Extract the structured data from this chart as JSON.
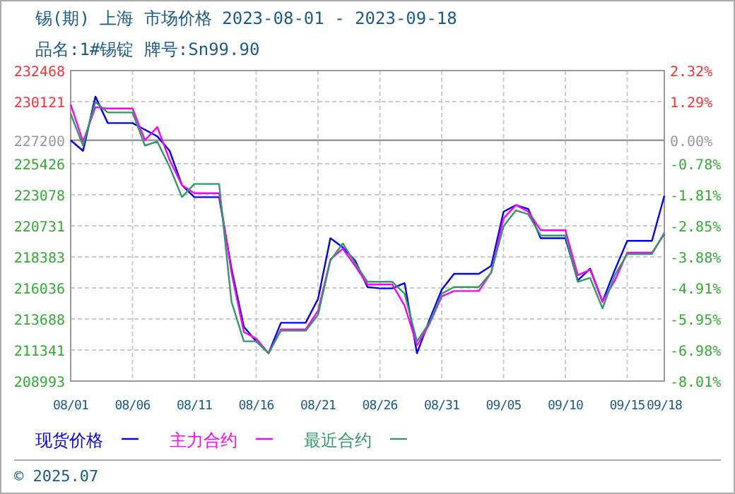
{
  "chart_data": {
    "type": "line",
    "title": "锡(期) 上海 市场价格 2023-08-01 - 2023-09-18",
    "subtitle": "品名:1#锡锭 牌号:Sn99.90",
    "x": [
      "2023-08-01",
      "2023-08-02",
      "2023-08-03",
      "2023-08-04",
      "2023-08-05",
      "2023-08-06",
      "2023-08-07",
      "2023-08-08",
      "2023-08-09",
      "2023-08-10",
      "2023-08-11",
      "2023-08-12",
      "2023-08-13",
      "2023-08-14",
      "2023-08-15",
      "2023-08-16",
      "2023-08-17",
      "2023-08-18",
      "2023-08-19",
      "2023-08-20",
      "2023-08-21",
      "2023-08-22",
      "2023-08-23",
      "2023-08-24",
      "2023-08-25",
      "2023-08-26",
      "2023-08-27",
      "2023-08-28",
      "2023-08-29",
      "2023-08-30",
      "2023-08-31",
      "2023-09-01",
      "2023-09-02",
      "2023-09-03",
      "2023-09-04",
      "2023-09-05",
      "2023-09-06",
      "2023-09-07",
      "2023-09-08",
      "2023-09-09",
      "2023-09-10",
      "2023-09-11",
      "2023-09-12",
      "2023-09-13",
      "2023-09-14",
      "2023-09-15",
      "2023-09-16",
      "2023-09-17",
      "2023-09-18"
    ],
    "series": [
      {
        "name": "现货价格",
        "color": "#0000ff",
        "values": [
          227200,
          226400,
          230500,
          228500,
          228500,
          228500,
          228000,
          227500,
          226400,
          223800,
          222900,
          222900,
          222900,
          217500,
          213100,
          212000,
          211100,
          213400,
          213400,
          213400,
          215200,
          219800,
          219100,
          218100,
          216100,
          216000,
          216000,
          216400,
          211100,
          213600,
          215900,
          217100,
          217100,
          217100,
          217700,
          221800,
          222300,
          222000,
          219800,
          219800,
          219800,
          216600,
          217500,
          215000,
          217400,
          219600,
          219600,
          219600,
          223000
        ]
      },
      {
        "name": "主力合约",
        "color": "#ff00ff",
        "values": [
          229900,
          227100,
          229700,
          229600,
          229600,
          229600,
          227200,
          228200,
          225700,
          223800,
          223200,
          223200,
          223200,
          217200,
          212700,
          212200,
          211100,
          212900,
          212900,
          212900,
          214300,
          218200,
          219000,
          217700,
          216300,
          216300,
          216300,
          214700,
          211700,
          213300,
          215400,
          215800,
          215800,
          215800,
          217200,
          221300,
          222300,
          221800,
          220400,
          220400,
          220400,
          217000,
          217400,
          215000,
          216600,
          218700,
          218700,
          218700,
          220100
        ]
      },
      {
        "name": "最近合约",
        "color": "#339966",
        "values": [
          229200,
          226800,
          230100,
          229300,
          229300,
          229300,
          226800,
          227100,
          225200,
          222900,
          223900,
          223900,
          223900,
          215000,
          212000,
          212000,
          211100,
          212800,
          212800,
          212800,
          214000,
          218100,
          219400,
          217900,
          216500,
          216500,
          216500,
          215600,
          212000,
          213400,
          215600,
          216100,
          216100,
          216100,
          217200,
          220700,
          221900,
          221600,
          220000,
          220000,
          220000,
          216500,
          216800,
          214500,
          217000,
          218600,
          218600,
          218600,
          220200
        ]
      }
    ],
    "xlim": [
      "2023-08-01",
      "2023-09-18"
    ],
    "xticks": [
      {
        "value": "2023-08-01",
        "label": "08/01"
      },
      {
        "value": "2023-08-06",
        "label": "08/06"
      },
      {
        "value": "2023-08-11",
        "label": "08/11"
      },
      {
        "value": "2023-08-16",
        "label": "08/16"
      },
      {
        "value": "2023-08-21",
        "label": "08/21"
      },
      {
        "value": "2023-08-26",
        "label": "08/26"
      },
      {
        "value": "2023-08-31",
        "label": "08/31"
      },
      {
        "value": "2023-09-05",
        "label": "09/05"
      },
      {
        "value": "2023-09-10",
        "label": "09/10"
      },
      {
        "value": "2023-09-15",
        "label": "09/15"
      },
      {
        "value": "2023-09-18",
        "label": "09/18"
      }
    ],
    "ylim": [
      208993,
      232468
    ],
    "yticks": [
      208993,
      211341,
      213688,
      216036,
      218383,
      220731,
      223078,
      225426,
      227200,
      230121,
      232468
    ],
    "y2lim": [
      -8.01,
      2.32
    ],
    "y2ticks": [
      {
        "value": -8.01,
        "label": "-8.01%"
      },
      {
        "value": -6.98,
        "label": "-6.98%"
      },
      {
        "value": -5.95,
        "label": "-5.95%"
      },
      {
        "value": -4.91,
        "label": "-4.91%"
      },
      {
        "value": -3.88,
        "label": "-3.88%"
      },
      {
        "value": -2.85,
        "label": "-2.85%"
      },
      {
        "value": -1.81,
        "label": "-1.81%"
      },
      {
        "value": -0.78,
        "label": "-0.78%"
      },
      {
        "value": 0,
        "label": "0.00%"
      },
      {
        "value": 1.29,
        "label": "1.29%"
      },
      {
        "value": 2.32,
        "label": "2.32%"
      }
    ],
    "ref_lines": [
      {
        "axis": "y",
        "value": 227200,
        "color": "#999999"
      }
    ],
    "grid": true,
    "legend": "bottom",
    "annotations": [
      "© 2025.07"
    ]
  }
}
